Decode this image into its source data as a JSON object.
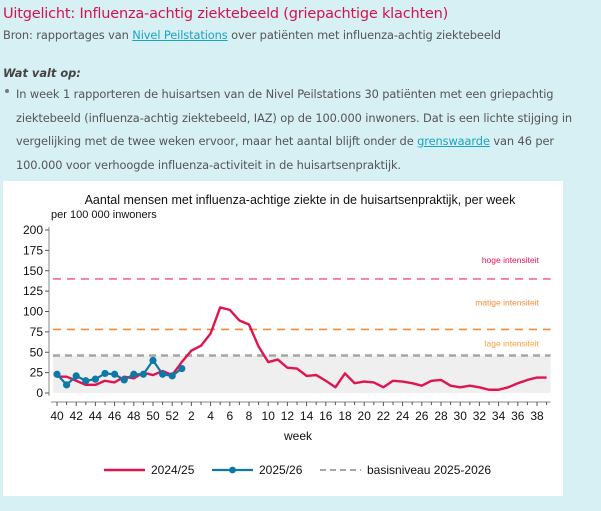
{
  "header": {
    "title": "Uitgelicht: Influenza-achtig ziektebeeld (griepachtige klachten)",
    "source_prefix": "Bron: rapportages van ",
    "source_link": "Nivel Peilstations",
    "source_suffix": " over patiënten met influenza-achtig ziektebeeld"
  },
  "highlights": {
    "heading": "Wat valt op:",
    "bullet_part1": "In week 1 rapporteren de huisartsen van de Nivel Peilstations 30 patiënten met een griepachtig ziektebeeld (influenza-achtig ziektebeeld, IAZ) op de 100.000 inwoners. Dat is een lichte stijging in vergelijking met de twee weken ervoor, maar het aantal blijft onder de ",
    "bullet_link": "grenswaarde",
    "bullet_part2": " van 46 per 100.000 voor verhoogde influenza-activiteit in de huisartsenpraktijk."
  },
  "chart_data": {
    "type": "line",
    "title": "Aantal mensen met influenza-achtige ziekte in de huisartsenpraktijk, per week",
    "ylabel": "per 100 000 inwoners",
    "xlabel": "week",
    "ylim": [
      0,
      200
    ],
    "yticks": [
      0,
      25,
      50,
      75,
      100,
      125,
      150,
      175,
      200
    ],
    "x": [
      40,
      41,
      42,
      43,
      44,
      45,
      46,
      47,
      48,
      49,
      50,
      51,
      52,
      1,
      2,
      3,
      4,
      5,
      6,
      7,
      8,
      9,
      10,
      11,
      12,
      13,
      14,
      15,
      16,
      17,
      18,
      19,
      20,
      21,
      22,
      23,
      24,
      25,
      26,
      27,
      28,
      29,
      30,
      31,
      32,
      33,
      34,
      35,
      36,
      37,
      38,
      39
    ],
    "xtick_labels": [
      "40",
      "42",
      "44",
      "46",
      "48",
      "50",
      "52",
      "2",
      "4",
      "6",
      "8",
      "10",
      "12",
      "14",
      "16",
      "18",
      "20",
      "22",
      "24",
      "26",
      "28",
      "30",
      "32",
      "34",
      "36",
      "38"
    ],
    "series": [
      {
        "name": "2024/25",
        "color": "#e0144f",
        "markers": false,
        "values": [
          20,
          20,
          15,
          10,
          10,
          15,
          13,
          20,
          18,
          25,
          22,
          27,
          22,
          38,
          52,
          58,
          73,
          105,
          102,
          89,
          84,
          57,
          38,
          41,
          31,
          30,
          21,
          22,
          15,
          7,
          24,
          12,
          14,
          13,
          7,
          15,
          14,
          12,
          9,
          15,
          16,
          9,
          7,
          9,
          7,
          4,
          4,
          7,
          12,
          16,
          19,
          19
        ]
      },
      {
        "name": "2025/26",
        "color": "#0e79a6",
        "markers": true,
        "values": [
          23,
          10,
          21,
          15,
          17,
          24,
          23,
          16,
          23,
          23,
          40,
          23,
          21,
          30
        ]
      }
    ],
    "reference_lines": [
      {
        "name": "basisniveau 2025-2026",
        "value": 46,
        "color": "#a6a6a6",
        "label": ""
      },
      {
        "name": "matige-grens",
        "value": 78,
        "color": "#f58b3a",
        "label": "matige intensiteit"
      },
      {
        "name": "hoge-grens",
        "value": 140,
        "color": "#ee6b9a",
        "label": "hoge intensiteit"
      }
    ],
    "band_labels": [
      {
        "text": "hoge intensiteit",
        "value": 163,
        "color": "#e0144f"
      },
      {
        "text": "matige intensiteit",
        "value": 111,
        "color": "#f58b3a"
      },
      {
        "text": "lage intensiteit",
        "value": 61,
        "color": "#f5a03a"
      }
    ],
    "baseline_band": {
      "from": 0,
      "to": 46,
      "color": "#efefef"
    },
    "legend": [
      "2024/25",
      "2025/26",
      "basisniveau 2025-2026"
    ],
    "legend_position": "bottom"
  }
}
